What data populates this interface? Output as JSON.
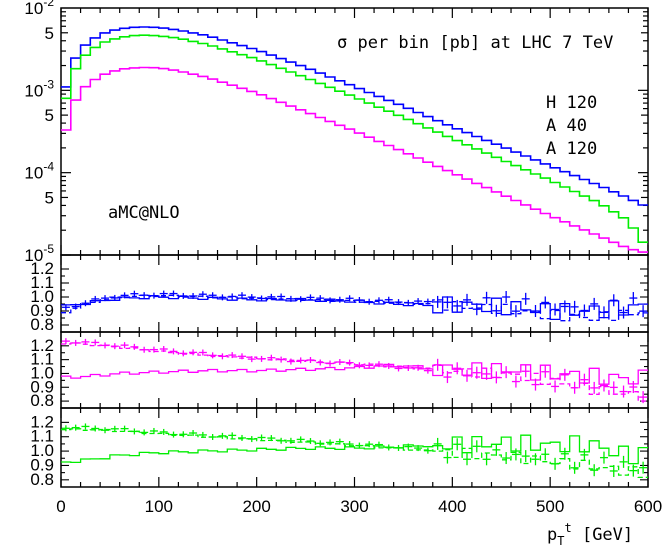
{
  "chart_data": [
    {
      "type": "line",
      "title": "σ per bin [pb]  at LHC 7 TeV",
      "annotation": "aMC@NLO",
      "xlabel": "",
      "ylabel": "",
      "xlim": [
        0,
        600
      ],
      "ylim": [
        1e-05,
        0.01
      ],
      "y_scale": "log",
      "grid": false,
      "legend_position": "right",
      "x_tick_labels": [
        "0",
        "100",
        "200",
        "300",
        "400",
        "500",
        "600"
      ],
      "y_tick_labels": [
        "10^-2",
        "5",
        "10^-3",
        "5",
        "10^-4",
        "5",
        "10^-5"
      ],
      "legend_entries": [
        {
          "label": "H 120",
          "color": "#0000ff"
        },
        {
          "label": "A 40",
          "color": "#00ee00"
        },
        {
          "label": "A 120",
          "color": "#ff00ff"
        }
      ],
      "series": [
        {
          "name": "H 120",
          "color": "#0000ff",
          "anchors_x": [
            0,
            5,
            10,
            20,
            40,
            60,
            80,
            100,
            120,
            150,
            200,
            250,
            300,
            350,
            400,
            450,
            500,
            550,
            580,
            600
          ],
          "anchors_y": [
            0.00045,
            0.0011,
            0.0019,
            0.0032,
            0.0048,
            0.0056,
            0.0059,
            0.0058,
            0.0054,
            0.0046,
            0.0031,
            0.0019,
            0.00111,
            0.00064,
            0.00036,
            0.00021,
            0.000121,
            7e-05,
            4.9e-05,
            3.8e-05
          ]
        },
        {
          "name": "A 40",
          "color": "#00ee00",
          "anchors_x": [
            0,
            5,
            10,
            20,
            40,
            60,
            80,
            100,
            120,
            150,
            200,
            250,
            300,
            350,
            400,
            450,
            500,
            550,
            580,
            600
          ],
          "anchors_y": [
            0.00033,
            0.0008,
            0.0014,
            0.0024,
            0.0037,
            0.0044,
            0.0047,
            0.0046,
            0.0043,
            0.0036,
            0.0024,
            0.00143,
            0.00083,
            0.00047,
            0.00026,
            0.000145,
            8.1e-05,
            4.3e-05,
            2.6e-05,
            1.17e-05
          ]
        },
        {
          "name": "A 120",
          "color": "#ff00ff",
          "anchors_x": [
            0,
            5,
            10,
            20,
            40,
            60,
            80,
            100,
            120,
            150,
            200,
            250,
            300,
            350,
            400,
            450,
            500,
            550,
            580,
            600
          ],
          "anchors_y": [
            0.00013,
            0.00033,
            0.00058,
            0.001,
            0.0015,
            0.0018,
            0.0019,
            0.00188,
            0.00172,
            0.00143,
            0.00093,
            0.00055,
            0.00032,
            0.00018,
            0.0001,
            5.5e-05,
            3e-05,
            1.7e-05,
            1.2e-05,
            1.05e-05
          ]
        }
      ]
    },
    {
      "type": "line",
      "xlim": [
        0,
        600
      ],
      "ylim": [
        0.75,
        1.3
      ],
      "y_tick_labels": [
        "1.2",
        "1.1",
        "1.0",
        "0.9",
        "0.8"
      ],
      "color": "#0000ff",
      "solid": {
        "x": [
          0,
          30,
          60,
          100,
          150,
          200,
          250,
          300,
          340,
          380,
          420,
          460,
          500,
          540,
          580,
          600
        ],
        "y": [
          0.93,
          0.96,
          0.99,
          1.0,
          0.99,
          0.98,
          0.98,
          0.97,
          0.95,
          0.94,
          0.94,
          0.93,
          0.9,
          0.9,
          0.92,
          0.94
        ]
      },
      "dashed": {
        "x": [
          0,
          30,
          60,
          100,
          150,
          200,
          250,
          300,
          340,
          380,
          420,
          460,
          500,
          540,
          580,
          600
        ],
        "y": [
          0.88,
          0.96,
          1.0,
          1.01,
          1.0,
          0.99,
          0.98,
          0.97,
          0.96,
          0.95,
          0.93,
          0.91,
          0.87,
          0.85,
          0.88,
          0.9
        ]
      },
      "points": {
        "x": [
          0,
          30,
          60,
          100,
          150,
          200,
          250,
          300,
          340,
          380,
          420,
          460,
          500,
          540,
          580,
          600
        ],
        "y": [
          0.91,
          0.97,
          1.01,
          1.02,
          1.01,
          1.0,
          0.99,
          0.98,
          0.97,
          0.96,
          0.95,
          0.95,
          0.93,
          0.92,
          0.94,
          0.95
        ]
      }
    },
    {
      "type": "line",
      "xlim": [
        0,
        600
      ],
      "ylim": [
        0.75,
        1.3
      ],
      "y_tick_labels": [
        "1.2",
        "1.1",
        "1.0",
        "0.9",
        "0.8"
      ],
      "color": "#ff00ff",
      "solid": {
        "x": [
          0,
          30,
          60,
          100,
          150,
          200,
          250,
          300,
          340,
          380,
          420,
          460,
          500,
          540,
          580,
          600
        ],
        "y": [
          0.97,
          0.98,
          1.0,
          1.01,
          1.02,
          1.02,
          1.03,
          1.04,
          1.06,
          1.04,
          1.02,
          1.03,
          1.0,
          0.98,
          0.96,
          0.97
        ]
      },
      "dashed": {
        "x": [
          0,
          30,
          60,
          100,
          150,
          200,
          250,
          300,
          340,
          380,
          420,
          460,
          500,
          540,
          580,
          600
        ],
        "y": [
          1.22,
          1.21,
          1.19,
          1.16,
          1.13,
          1.11,
          1.09,
          1.07,
          1.05,
          1.03,
          1.01,
          0.99,
          0.95,
          0.89,
          0.85,
          0.83
        ]
      },
      "points": {
        "x": [
          0,
          30,
          60,
          100,
          150,
          200,
          250,
          300,
          340,
          380,
          420,
          460,
          500,
          540,
          580,
          600
        ],
        "y": [
          1.24,
          1.22,
          1.2,
          1.17,
          1.14,
          1.11,
          1.09,
          1.07,
          1.05,
          1.02,
          1.0,
          0.98,
          0.96,
          0.92,
          0.88,
          0.86
        ]
      }
    },
    {
      "type": "line",
      "xlim": [
        0,
        600
      ],
      "ylim": [
        0.75,
        1.3
      ],
      "y_tick_labels": [
        "1.2",
        "1.1",
        "1.0",
        "0.9",
        "0.8"
      ],
      "color": "#00ee00",
      "solid": {
        "x": [
          0,
          30,
          60,
          100,
          150,
          200,
          250,
          300,
          340,
          380,
          420,
          460,
          500,
          540,
          580,
          600
        ],
        "y": [
          0.92,
          0.94,
          0.97,
          0.99,
          1.0,
          1.01,
          1.02,
          1.02,
          1.03,
          1.04,
          1.05,
          1.06,
          1.04,
          1.05,
          0.97,
          0.98
        ]
      },
      "dashed": {
        "x": [
          0,
          30,
          60,
          100,
          150,
          200,
          250,
          300,
          340,
          380,
          420,
          460,
          500,
          540,
          580,
          600
        ],
        "y": [
          1.15,
          1.15,
          1.14,
          1.12,
          1.1,
          1.08,
          1.06,
          1.04,
          1.02,
          1.0,
          0.98,
          0.96,
          0.93,
          0.9,
          0.86,
          0.84
        ]
      },
      "points": {
        "x": [
          0,
          30,
          60,
          100,
          150,
          200,
          250,
          300,
          340,
          380,
          420,
          460,
          500,
          540,
          580,
          600
        ],
        "y": [
          1.17,
          1.16,
          1.15,
          1.13,
          1.11,
          1.09,
          1.07,
          1.05,
          1.03,
          1.01,
          0.99,
          0.97,
          0.95,
          0.92,
          0.89,
          0.87
        ]
      }
    }
  ],
  "x_axis": {
    "label_main": "p",
    "label_sub": "T",
    "label_sup": "t",
    "label_unit": " [GeV]"
  }
}
